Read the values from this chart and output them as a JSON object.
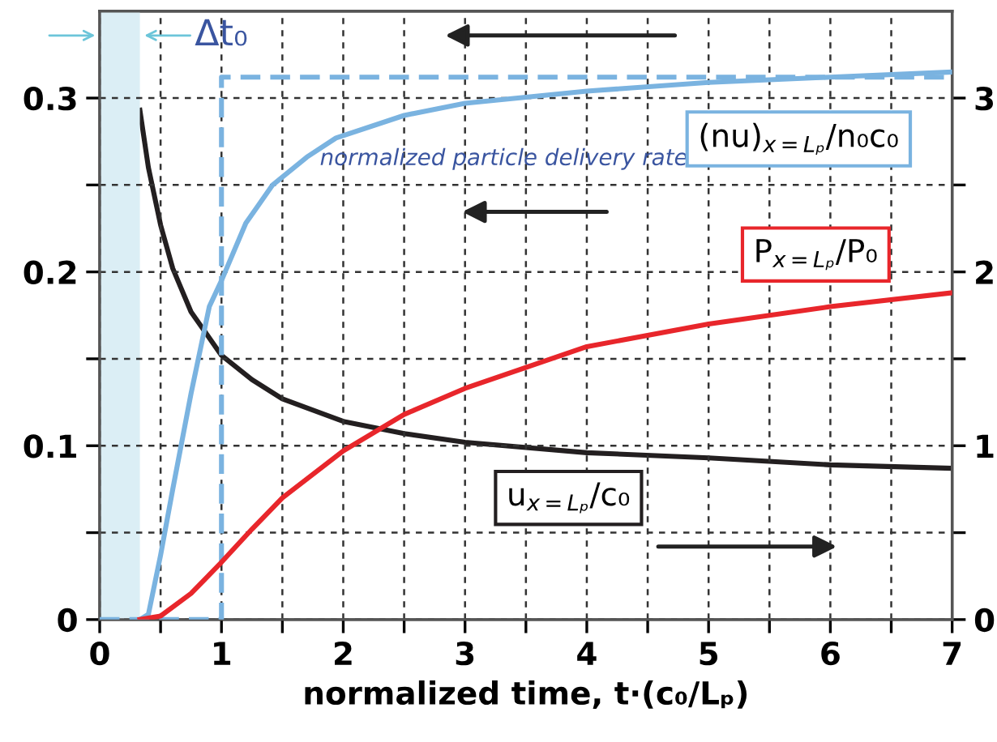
{
  "chart_data": {
    "type": "line",
    "xlabel": "normalized time, t·(c₀/Lₚ)",
    "xlim": [
      0,
      7
    ],
    "ylim": [
      0,
      0.35
    ],
    "y2lim": [
      0,
      3.5
    ],
    "xticks": [
      0,
      {
        "value": 0.5,
        "label": null
      },
      1,
      {
        "value": 1.5,
        "label": null
      },
      2,
      {
        "value": 2.5,
        "label": null
      },
      3,
      {
        "value": 3.5,
        "label": null
      },
      4,
      {
        "value": 4.5,
        "label": null
      },
      5,
      {
        "value": 5.5,
        "label": null
      },
      6,
      {
        "value": 6.5,
        "label": null
      },
      7
    ],
    "yticks": [
      {
        "value": 0,
        "label": "0"
      },
      {
        "value": 0.05,
        "label": null
      },
      0.1,
      {
        "value": 0.15,
        "label": null
      },
      0.2,
      {
        "value": 0.25,
        "label": null
      },
      0.3
    ],
    "y2ticks": [
      0,
      {
        "value": 0.5,
        "label": null
      },
      1,
      {
        "value": 1.5,
        "label": null
      },
      2,
      {
        "value": 2.5,
        "label": null
      },
      3
    ],
    "grid": true,
    "series": [
      {
        "color": "#7ab3e0",
        "line_style": "dashed",
        "x": [
          0,
          1,
          1,
          7
        ],
        "values": [
          0,
          0,
          0.312,
          0.312
        ]
      },
      {
        "name": "(nu)$_{x=Lₚ}$/n₀c₀",
        "color": "#7ab3e0",
        "x": [
          0.33,
          0.4,
          0.5,
          0.6,
          0.75,
          0.9,
          1,
          1.2,
          1.42,
          1.7,
          1.94,
          2.5,
          3,
          4,
          5,
          6,
          7
        ],
        "values": [
          0,
          0.003,
          0.037,
          0.075,
          0.13,
          0.18,
          0.195,
          0.228,
          0.25,
          0.266,
          0.277,
          0.29,
          0.297,
          0.304,
          0.309,
          0.312,
          0.315
        ]
      },
      {
        "name": "P$_{x=Lₚ}$/P₀",
        "color": "#e8262b",
        "x": [
          0.33,
          0.5,
          0.75,
          1,
          1.25,
          1.5,
          2,
          2.5,
          3,
          3.5,
          4,
          5,
          6,
          7
        ],
        "values": [
          0,
          0.002,
          0.015,
          0.033,
          0.052,
          0.07,
          0.097,
          0.118,
          0.133,
          0.145,
          0.157,
          0.17,
          0.18,
          0.188
        ]
      },
      {
        "name": "u$_{x=Lₚ}$/c₀",
        "color": "#231f20",
        "axis": "y2",
        "x": [
          0.33,
          0.4,
          0.5,
          0.6,
          0.75,
          1,
          1.25,
          1.5,
          2,
          2.5,
          3,
          4,
          5,
          6,
          7
        ],
        "values": [
          2.93,
          2.6,
          2.27,
          2.02,
          1.77,
          1.52,
          1.38,
          1.27,
          1.14,
          1.07,
          1.02,
          0.96,
          0.93,
          0.89,
          0.87
        ]
      }
    ],
    "bands": [
      {
        "axis": "x",
        "from": 0,
        "to": 0.33,
        "label": "Δt₀",
        "color": "#dbeef5"
      }
    ],
    "annotations": [
      "normalized particle delivery rate"
    ]
  }
}
